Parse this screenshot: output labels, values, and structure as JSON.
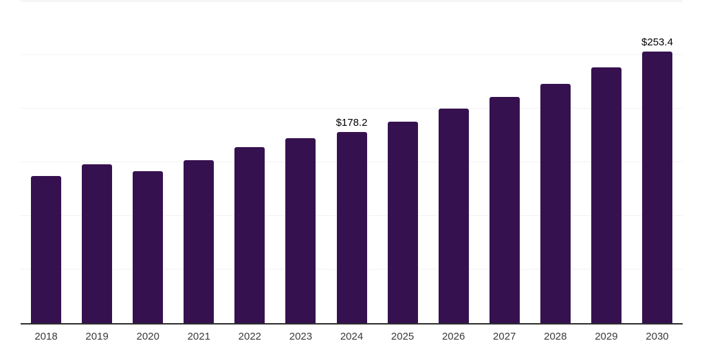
{
  "chart_data": {
    "type": "bar",
    "title": "",
    "xlabel": "",
    "ylabel": "",
    "categories": [
      "2018",
      "2019",
      "2020",
      "2021",
      "2022",
      "2023",
      "2024",
      "2025",
      "2026",
      "2027",
      "2028",
      "2029",
      "2030"
    ],
    "values": [
      137.3,
      148.2,
      141.5,
      151.7,
      164.2,
      172.2,
      178.2,
      188.0,
      199.8,
      211.1,
      223.2,
      238.6,
      253.4
    ],
    "data_labels": [
      "",
      "",
      "",
      "",
      "",
      "",
      "$178.2",
      "",
      "",
      "",
      "",
      "",
      "$253.4"
    ],
    "ylim": [
      0,
      300
    ],
    "gridline_values": [
      50,
      100,
      150,
      200,
      250,
      300
    ],
    "grid": "horizontal",
    "legend": "none",
    "y_axis_tick_labels_visible": false,
    "colors": {
      "bar": "#36114F",
      "gridline": "#f2f2f2",
      "top_gridline": "#e8e8e8",
      "axis_line": "#2e2e2e",
      "tick_label": "#3a3a3a",
      "data_label": "#000000",
      "background": "#ffffff"
    }
  }
}
